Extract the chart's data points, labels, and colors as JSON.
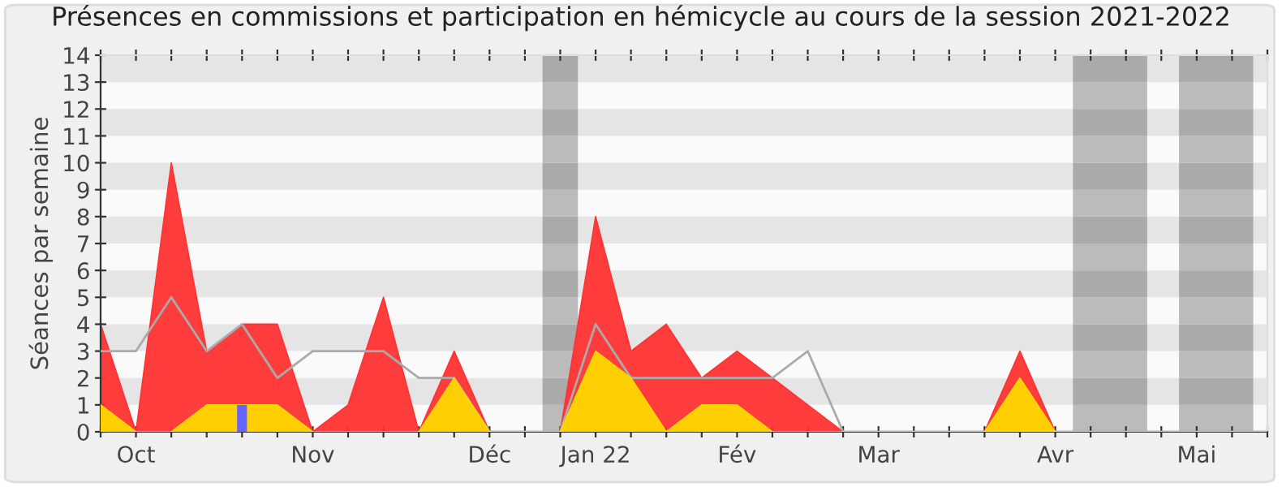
{
  "chart_data": {
    "type": "area",
    "title": "Présences en commissions et participation en hémicycle au cours de la session 2021-2022",
    "ylabel": "Séances par semaine",
    "categories": [
      null,
      "Oct",
      null,
      null,
      null,
      null,
      "Nov",
      null,
      null,
      null,
      null,
      "Déc",
      null,
      null,
      "Jan 22",
      null,
      null,
      null,
      "Fév",
      null,
      null,
      null,
      "Mar",
      null,
      null,
      null,
      null,
      "Avr",
      null,
      null,
      null,
      "Mai",
      null,
      null
    ],
    "series": [
      {
        "color": "#ff3333",
        "values": [
          4,
          0,
          10,
          3,
          4,
          4,
          0,
          1,
          5,
          0,
          3,
          0,
          0,
          0,
          8,
          3,
          4,
          2,
          3,
          2,
          1,
          0,
          0,
          0,
          0,
          0,
          3,
          0,
          0,
          0,
          0,
          0,
          0,
          0
        ]
      },
      {
        "type": "line",
        "color": "#aaaaaa",
        "values": [
          3,
          3,
          5,
          3,
          4,
          2,
          3,
          3,
          3,
          2,
          2,
          0,
          0,
          0,
          4,
          2,
          2,
          2,
          2,
          2,
          3,
          0,
          0,
          0,
          0,
          0,
          0,
          0,
          0,
          0,
          0,
          0,
          0,
          0
        ]
      },
      {
        "color": "#ffd700",
        "values": [
          1,
          0,
          0,
          1,
          1,
          1,
          0,
          0,
          0,
          0,
          2,
          0,
          0,
          0,
          3,
          2,
          0,
          1,
          1,
          0,
          0,
          0,
          0,
          0,
          0,
          0,
          2,
          0,
          0,
          0,
          0,
          0,
          0,
          0
        ]
      },
      {
        "type": "bar",
        "color": "#6666ff",
        "values": [
          null,
          null,
          null,
          null,
          1,
          null,
          null,
          null,
          null,
          null,
          null,
          null,
          null,
          null,
          null,
          null,
          null,
          null,
          null,
          null,
          null,
          null,
          null,
          null,
          null,
          null,
          null,
          null,
          null,
          null,
          null,
          null,
          null,
          null
        ]
      }
    ],
    "ylim": [
      0,
      14
    ],
    "yticks": [
      0,
      1,
      2,
      3,
      4,
      5,
      6,
      7,
      8,
      9,
      10,
      11,
      12,
      13,
      14
    ],
    "grid": false
  }
}
